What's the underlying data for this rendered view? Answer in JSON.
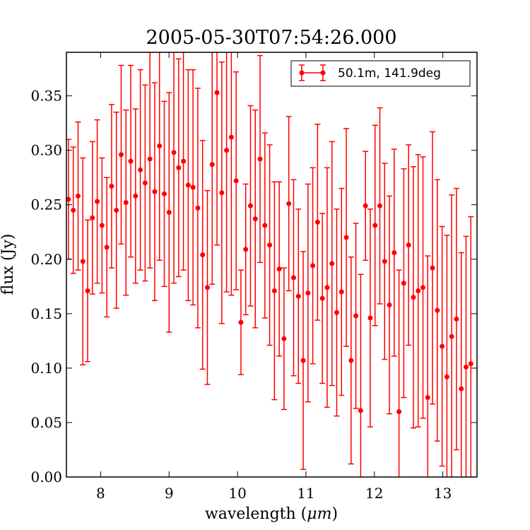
{
  "chart_data": {
    "type": "scatter",
    "title": "2005-05-30T07:54:26.000",
    "xlabel_main": "wavelength (",
    "xlabel_unit": "μm",
    "xlabel_end": ")",
    "ylabel": "flux (Jy)",
    "xlim": [
      7.5,
      13.5
    ],
    "ylim": [
      0.0,
      0.39
    ],
    "x_ticks": [
      8,
      9,
      10,
      11,
      12,
      13
    ],
    "x_tick_labels": [
      "8",
      "9",
      "10",
      "11",
      "12",
      "13"
    ],
    "y_ticks": [
      0.0,
      0.05,
      0.1,
      0.15,
      0.2,
      0.25,
      0.3,
      0.35
    ],
    "y_tick_labels": [
      "0.00",
      "0.05",
      "0.10",
      "0.15",
      "0.20",
      "0.25",
      "0.30",
      "0.35"
    ],
    "grid": false,
    "legend_position": "top-right",
    "color": "#ff0000",
    "series": [
      {
        "name": "50.1m, 141.9deg",
        "x": [
          7.53,
          7.6,
          7.67,
          7.74,
          7.81,
          7.88,
          7.95,
          8.02,
          8.09,
          8.16,
          8.23,
          8.3,
          8.37,
          8.44,
          8.51,
          8.58,
          8.65,
          8.72,
          8.79,
          8.86,
          8.93,
          9.0,
          9.07,
          9.14,
          9.21,
          9.28,
          9.35,
          9.42,
          9.49,
          9.56,
          9.63,
          9.7,
          9.77,
          9.84,
          9.91,
          9.98,
          10.05,
          10.12,
          10.19,
          10.26,
          10.33,
          10.4,
          10.47,
          10.54,
          10.61,
          10.68,
          10.75,
          10.82,
          10.89,
          10.96,
          11.03,
          11.1,
          11.17,
          11.24,
          11.31,
          11.38,
          11.45,
          11.52,
          11.59,
          11.66,
          11.73,
          11.8,
          11.87,
          11.94,
          12.01,
          12.08,
          12.15,
          12.22,
          12.29,
          12.36,
          12.43,
          12.5,
          12.57,
          12.64,
          12.71,
          12.78,
          12.85,
          12.92,
          12.99,
          13.06,
          13.13,
          13.2,
          13.27,
          13.34,
          13.41
        ],
        "y": [
          0.255,
          0.245,
          0.258,
          0.198,
          0.171,
          0.238,
          0.253,
          0.231,
          0.211,
          0.267,
          0.245,
          0.296,
          0.252,
          0.29,
          0.258,
          0.282,
          0.27,
          0.292,
          0.262,
          0.304,
          0.26,
          0.243,
          0.298,
          0.284,
          0.29,
          0.268,
          0.266,
          0.247,
          0.204,
          0.174,
          0.287,
          0.353,
          0.261,
          0.3,
          0.312,
          0.272,
          0.142,
          0.209,
          0.249,
          0.237,
          0.292,
          0.231,
          0.213,
          0.171,
          0.191,
          0.127,
          0.251,
          0.183,
          0.166,
          0.107,
          0.169,
          0.194,
          0.234,
          0.164,
          0.174,
          0.196,
          0.151,
          0.17,
          0.22,
          0.107,
          0.148,
          0.061,
          0.249,
          0.146,
          0.231,
          0.249,
          0.198,
          0.158,
          0.206,
          0.06,
          0.178,
          0.213,
          0.165,
          0.171,
          0.174,
          0.073,
          0.192,
          0.153,
          0.12,
          0.092,
          0.129,
          0.145,
          0.081,
          0.101,
          0.104
        ],
        "err": [
          0.055,
          0.058,
          0.068,
          0.095,
          0.065,
          0.07,
          0.075,
          0.062,
          0.064,
          0.075,
          0.09,
          0.082,
          0.085,
          0.088,
          0.08,
          0.092,
          0.09,
          0.1,
          0.1,
          0.105,
          0.085,
          0.11,
          0.12,
          0.1,
          0.1,
          0.106,
          0.108,
          0.11,
          0.105,
          0.089,
          0.11,
          0.14,
          0.12,
          0.13,
          0.145,
          0.1,
          0.048,
          0.06,
          0.092,
          0.1,
          0.095,
          0.085,
          0.092,
          0.1,
          0.08,
          0.065,
          0.08,
          0.09,
          0.08,
          0.1,
          0.1,
          0.09,
          0.09,
          0.078,
          0.11,
          0.112,
          0.095,
          0.095,
          0.1,
          0.095,
          0.085,
          0.125,
          0.05,
          0.1,
          0.092,
          0.09,
          0.09,
          0.1,
          0.095,
          0.13,
          0.105,
          0.092,
          0.12,
          0.125,
          0.12,
          0.13,
          0.125,
          0.12,
          0.11,
          0.13,
          0.13,
          0.12,
          0.125,
          0.12,
          0.135
        ]
      }
    ]
  }
}
